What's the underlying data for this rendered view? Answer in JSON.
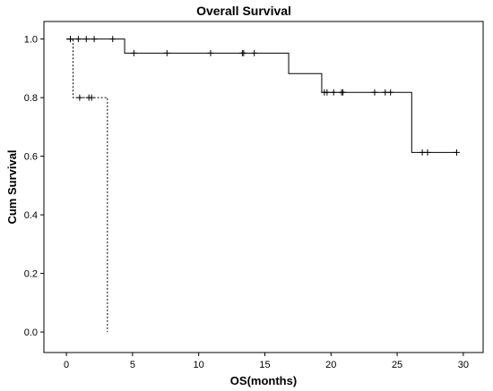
{
  "chart_data": {
    "type": "line",
    "title": "Overall Survival",
    "xlabel": "OS(months)",
    "ylabel": "Cum Survival",
    "xlim": [
      -1.7,
      31.5
    ],
    "ylim": [
      -0.07,
      1.06
    ],
    "xticks": [
      0,
      5,
      10,
      15,
      20,
      25,
      30
    ],
    "yticks": [
      0.0,
      0.2,
      0.4,
      0.6,
      0.8,
      1.0
    ],
    "xtick_labels": [
      "0",
      "5",
      "10",
      "15",
      "20",
      "25",
      "30"
    ],
    "ytick_labels": [
      "0.0",
      "0.2",
      "0.4",
      "0.6",
      "0.8",
      "1.0"
    ],
    "grid": false,
    "legend": "none",
    "series": [
      {
        "style": "solid",
        "color": "#000000",
        "steps": [
          [
            0,
            1.0
          ],
          [
            4.4,
            0.952
          ],
          [
            16.8,
            0.882
          ],
          [
            19.3,
            0.818
          ],
          [
            26.1,
            0.613
          ],
          [
            29.5,
            0.613
          ]
        ],
        "censored": [
          [
            0.3,
            1.0
          ],
          [
            0.9,
            1.0
          ],
          [
            1.5,
            1.0
          ],
          [
            2.1,
            1.0
          ],
          [
            3.5,
            1.0
          ],
          [
            5.1,
            0.952
          ],
          [
            7.6,
            0.952
          ],
          [
            10.9,
            0.952
          ],
          [
            13.3,
            0.952
          ],
          [
            13.4,
            0.952
          ],
          [
            14.2,
            0.952
          ],
          [
            19.5,
            0.818
          ],
          [
            19.7,
            0.818
          ],
          [
            20.2,
            0.818
          ],
          [
            20.8,
            0.818
          ],
          [
            20.9,
            0.818
          ],
          [
            23.3,
            0.818
          ],
          [
            24.1,
            0.818
          ],
          [
            24.5,
            0.818
          ],
          [
            26.9,
            0.613
          ],
          [
            27.3,
            0.613
          ],
          [
            29.5,
            0.613
          ]
        ]
      },
      {
        "style": "dashed",
        "color": "#000000",
        "steps": [
          [
            0,
            1.0
          ],
          [
            0.5,
            0.8
          ],
          [
            3.1,
            0.0
          ]
        ],
        "censored": [
          [
            0.3,
            1.0
          ],
          [
            1.0,
            0.8
          ],
          [
            1.7,
            0.8
          ],
          [
            1.9,
            0.8
          ]
        ]
      }
    ]
  }
}
